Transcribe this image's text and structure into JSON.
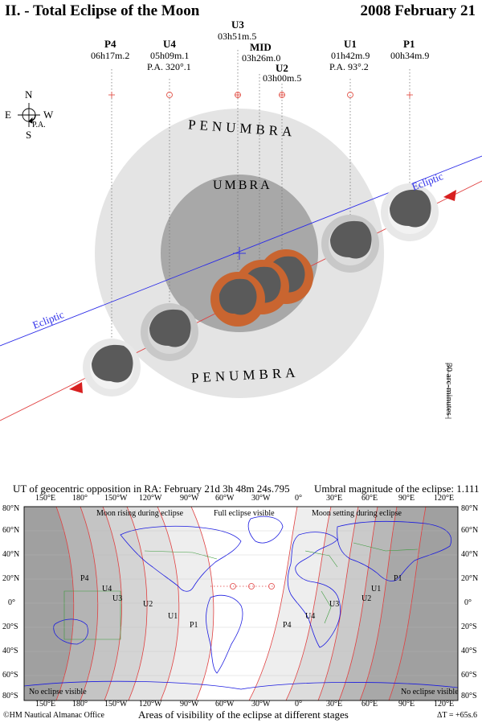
{
  "header": {
    "title": "II. - Total Eclipse of the Moon",
    "date": "2008 February 21"
  },
  "compass": {
    "north": "N",
    "south": "S",
    "east": "E",
    "west": "W",
    "pa_label": "P.A."
  },
  "contacts": [
    {
      "name": "P4",
      "time": "06h17m.2",
      "pa": ""
    },
    {
      "name": "U4",
      "time": "05h09m.1",
      "pa": "P.A. 320°.1"
    },
    {
      "name": "U3",
      "time": "03h51m.5",
      "pa": ""
    },
    {
      "name": "MID",
      "time": "03h26m.0",
      "pa": ""
    },
    {
      "name": "U2",
      "time": "03h00m.5",
      "pa": ""
    },
    {
      "name": "U1",
      "time": "01h42m.9",
      "pa": "P.A. 93°.2"
    },
    {
      "name": "P1",
      "time": "00h34m.9",
      "pa": ""
    }
  ],
  "shadow_labels": {
    "penumbra_top": "PENUMBRA",
    "penumbra_bottom": "PENUMBRA",
    "umbra": "UMBRA",
    "ecliptic_left": "Ecliptic",
    "ecliptic_right": "Ecliptic"
  },
  "scale_label": "30 arc-minutes",
  "info": {
    "opposition": "UT of geocentric opposition in RA: February 21d 3h 48m 24s.795",
    "magnitude": "Umbral magnitude of the eclipse: 1.111"
  },
  "map": {
    "lon_labels_top": [
      "150°E",
      "180°",
      "150°W",
      "120°W",
      "90°W",
      "60°W",
      "30°W",
      "0°",
      "30°E",
      "60°E",
      "90°E",
      "120°E"
    ],
    "lon_labels_bottom": [
      "150°E",
      "180°",
      "150°W",
      "120°W",
      "90°W",
      "60°W",
      "30°W",
      "0°",
      "30°E",
      "60°E",
      "90°E",
      "120°E"
    ],
    "lat_labels": [
      "80°N",
      "60°N",
      "40°N",
      "20°N",
      "0°",
      "20°S",
      "40°S",
      "60°S",
      "80°S"
    ],
    "region_top_left": "Moon rising during eclipse",
    "region_top_center": "Full eclipse visible",
    "region_top_right": "Moon setting during eclipse",
    "no_eclipse_left": "No eclipse visible",
    "no_eclipse_right": "No eclipse visible",
    "curve_labels_west": [
      "P4",
      "U4",
      "U3",
      "U2",
      "U1",
      "P1"
    ],
    "curve_labels_east": [
      "P4",
      "U4",
      "U3",
      "U2",
      "U1",
      "P1"
    ]
  },
  "footer": {
    "copyright": "©HM Nautical Almanac Office",
    "caption": "Areas of visibility of the eclipse at different stages",
    "delta_t": "ΔT = +65s.6"
  }
}
